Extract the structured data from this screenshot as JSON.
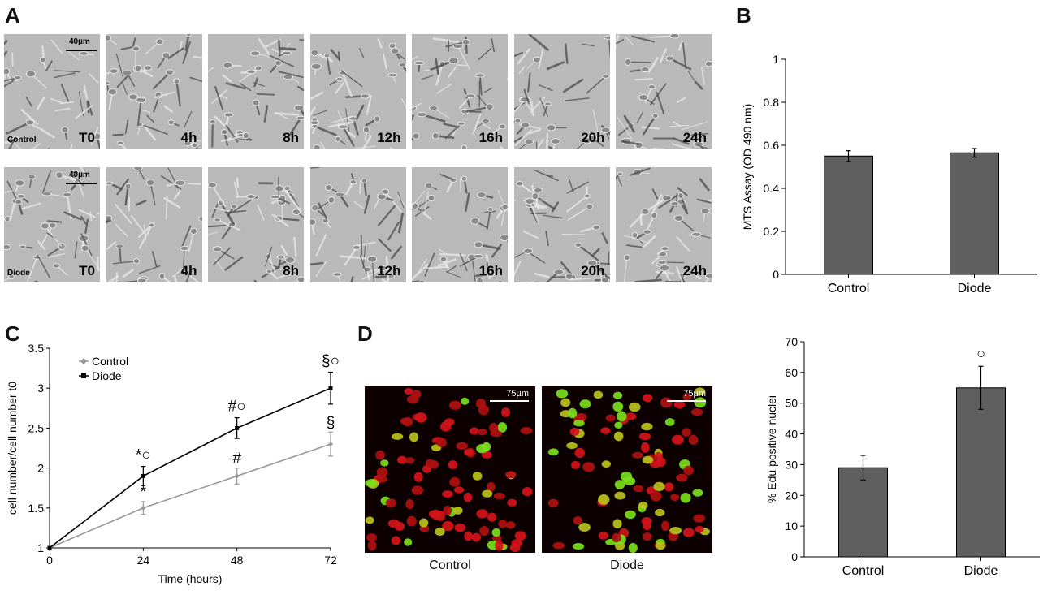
{
  "panels": {
    "a": "A",
    "b": "B",
    "c": "C",
    "d": "D"
  },
  "panel_a": {
    "scale_bar": "40µm",
    "time_labels": [
      "T0",
      "4h",
      "8h",
      "12h",
      "16h",
      "20h",
      "24h"
    ],
    "rows": [
      {
        "label": "Control"
      },
      {
        "label": "Diode"
      }
    ]
  },
  "panel_d_images": {
    "scale_bar": "75µm",
    "captions": [
      "Control",
      "Diode"
    ]
  },
  "chart_data": [
    {
      "type": "bar",
      "panel": "B",
      "categories": [
        "Control",
        "Diode"
      ],
      "values": [
        0.55,
        0.565
      ],
      "errors": [
        0.025,
        0.02
      ],
      "ylabel": "MTS Assay (OD 490 nm)",
      "ylim": [
        0,
        1
      ],
      "yticks": [
        "0",
        "0.2",
        "0.4",
        "0.6",
        "0.8",
        "1"
      ],
      "bar_color": "#5f5f5f"
    },
    {
      "type": "line",
      "panel": "C",
      "x": [
        0,
        24,
        48,
        72
      ],
      "xticks": [
        "0",
        "24",
        "48",
        "72"
      ],
      "yticks": [
        "1",
        "1.5",
        "2",
        "2.5",
        "3",
        "3.5"
      ],
      "xlabel": "Time (hours)",
      "ylabel": "cell number/cell number t0",
      "xlim": [
        0,
        72
      ],
      "ylim": [
        1,
        3.5
      ],
      "legend_position": "top-left",
      "series": [
        {
          "name": "Control",
          "values": [
            1,
            1.5,
            1.9,
            2.3
          ],
          "errors": [
            0,
            0.08,
            0.1,
            0.15
          ],
          "color": "#999999",
          "marker": "diamond",
          "annotations": [
            "",
            "*",
            "#",
            "§"
          ]
        },
        {
          "name": "Diode",
          "values": [
            1,
            1.9,
            2.5,
            3.0
          ],
          "errors": [
            0,
            0.12,
            0.13,
            0.2
          ],
          "color": "#000000",
          "marker": "square",
          "annotations": [
            "",
            "*○",
            "#○",
            "§○"
          ]
        }
      ]
    },
    {
      "type": "bar",
      "panel": "D",
      "categories": [
        "Control",
        "Diode"
      ],
      "values": [
        29,
        55
      ],
      "errors": [
        4,
        7
      ],
      "annotations": [
        "",
        "○"
      ],
      "ylabel": "% Edu positive nuclei",
      "ylim": [
        0,
        70
      ],
      "yticks": [
        "0",
        "10",
        "20",
        "30",
        "40",
        "50",
        "60",
        "70"
      ],
      "bar_color": "#5f5f5f"
    }
  ]
}
